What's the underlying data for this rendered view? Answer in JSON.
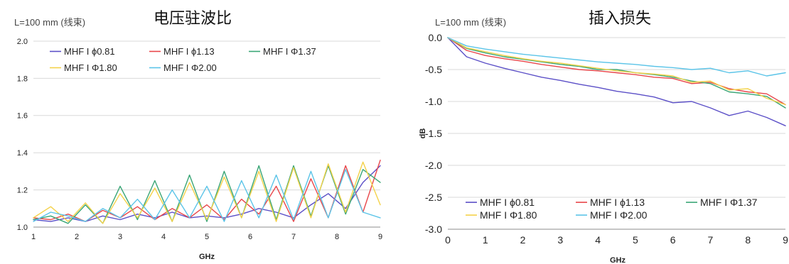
{
  "chart_data": [
    {
      "type": "line",
      "title": "电压驻波比",
      "subtitle": "L=100 mm (线束)",
      "xlabel": "GHz",
      "ylabel": "",
      "xlim": [
        1,
        9
      ],
      "ylim": [
        1.0,
        2.0
      ],
      "x_ticks": [
        "1",
        "2",
        "3",
        "4",
        "5",
        "6",
        "7",
        "8",
        "9"
      ],
      "y_ticks": [
        "2.0",
        "1.8",
        "1.6",
        "1.4",
        "1.2",
        "1.0"
      ],
      "grid": true,
      "legend_position": "top",
      "series": [
        {
          "name": "MHF I ϕ0.81",
          "color": "#5b4fc7",
          "x": [
            1,
            1.4,
            1.8,
            2.2,
            2.6,
            3.0,
            3.4,
            3.8,
            4.2,
            4.6,
            5.0,
            5.4,
            5.8,
            6.2,
            6.6,
            7.0,
            7.4,
            7.8,
            8.2,
            8.6,
            9.0
          ],
          "y": [
            1.04,
            1.03,
            1.05,
            1.03,
            1.06,
            1.04,
            1.07,
            1.05,
            1.08,
            1.05,
            1.06,
            1.05,
            1.07,
            1.1,
            1.08,
            1.05,
            1.12,
            1.18,
            1.1,
            1.24,
            1.33
          ]
        },
        {
          "name": "MHF I ϕ1.13",
          "color": "#e8464a",
          "x": [
            1,
            1.4,
            1.8,
            2.2,
            2.6,
            3.0,
            3.4,
            3.8,
            4.2,
            4.6,
            5.0,
            5.4,
            5.8,
            6.2,
            6.6,
            7.0,
            7.4,
            7.8,
            8.2,
            8.6,
            9.0
          ],
          "y": [
            1.05,
            1.04,
            1.07,
            1.03,
            1.09,
            1.05,
            1.11,
            1.04,
            1.1,
            1.05,
            1.12,
            1.04,
            1.15,
            1.07,
            1.22,
            1.03,
            1.26,
            1.05,
            1.33,
            1.08,
            1.36
          ]
        },
        {
          "name": "MHF I Φ1.37",
          "color": "#3aa676",
          "x": [
            1,
            1.4,
            1.8,
            2.2,
            2.6,
            3.0,
            3.4,
            3.8,
            4.2,
            4.6,
            5.0,
            5.4,
            5.8,
            6.2,
            6.6,
            7.0,
            7.4,
            7.8,
            8.2,
            8.6,
            9.0
          ],
          "y": [
            1.04,
            1.06,
            1.02,
            1.12,
            1.02,
            1.22,
            1.04,
            1.25,
            1.03,
            1.28,
            1.03,
            1.3,
            1.05,
            1.33,
            1.04,
            1.33,
            1.06,
            1.33,
            1.07,
            1.31,
            1.24
          ]
        },
        {
          "name": "MHF I Φ1.80",
          "color": "#f4d24a",
          "x": [
            1,
            1.4,
            1.8,
            2.2,
            2.6,
            3.0,
            3.4,
            3.8,
            4.2,
            4.6,
            5.0,
            5.4,
            5.8,
            6.2,
            6.6,
            7.0,
            7.4,
            7.8,
            8.2,
            8.6,
            9.0
          ],
          "y": [
            1.05,
            1.11,
            1.03,
            1.13,
            1.02,
            1.18,
            1.05,
            1.21,
            1.03,
            1.24,
            1.04,
            1.27,
            1.05,
            1.3,
            1.03,
            1.32,
            1.05,
            1.34,
            1.08,
            1.35,
            1.12
          ]
        },
        {
          "name": "MHF I Φ2.00",
          "color": "#5bc4e8",
          "x": [
            1,
            1.4,
            1.8,
            2.2,
            2.6,
            3.0,
            3.4,
            3.8,
            4.2,
            4.6,
            5.0,
            5.4,
            5.8,
            6.2,
            6.6,
            7.0,
            7.4,
            7.8,
            8.2,
            8.6,
            9.0
          ],
          "y": [
            1.03,
            1.08,
            1.06,
            1.03,
            1.1,
            1.05,
            1.15,
            1.04,
            1.2,
            1.05,
            1.22,
            1.03,
            1.25,
            1.05,
            1.28,
            1.04,
            1.3,
            1.05,
            1.31,
            1.08,
            1.05
          ]
        }
      ]
    },
    {
      "type": "line",
      "title": "插入损失",
      "subtitle": "L=100 mm (线束)",
      "xlabel": "GHz",
      "ylabel": "dB",
      "xlim": [
        0,
        9
      ],
      "ylim": [
        -3.0,
        0.0
      ],
      "x_ticks": [
        "0",
        "1",
        "2",
        "3",
        "4",
        "5",
        "6",
        "7",
        "8",
        "9"
      ],
      "y_ticks": [
        "0.0",
        "-0.5",
        "-1.0",
        "-1.5",
        "-2.0",
        "-2.5",
        "-3.0"
      ],
      "grid": true,
      "legend_position": "bottom-left",
      "series": [
        {
          "name": "MHF I ϕ0.81",
          "color": "#5b4fc7",
          "x": [
            0,
            0.5,
            1,
            1.5,
            2,
            2.5,
            3,
            3.5,
            4,
            4.5,
            5,
            5.5,
            6,
            6.5,
            7,
            7.5,
            8,
            8.5,
            9
          ],
          "y": [
            0,
            -0.3,
            -0.4,
            -0.48,
            -0.55,
            -0.62,
            -0.67,
            -0.73,
            -0.78,
            -0.84,
            -0.88,
            -0.93,
            -1.02,
            -1.0,
            -1.1,
            -1.22,
            -1.15,
            -1.25,
            -1.38
          ]
        },
        {
          "name": "MHF I ϕ1.13",
          "color": "#e8464a",
          "x": [
            0,
            0.5,
            1,
            1.5,
            2,
            2.5,
            3,
            3.5,
            4,
            4.5,
            5,
            5.5,
            6,
            6.5,
            7,
            7.5,
            8,
            8.5,
            9
          ],
          "y": [
            0,
            -0.2,
            -0.28,
            -0.33,
            -0.37,
            -0.42,
            -0.46,
            -0.5,
            -0.52,
            -0.55,
            -0.58,
            -0.62,
            -0.64,
            -0.72,
            -0.7,
            -0.8,
            -0.85,
            -0.88,
            -1.05
          ]
        },
        {
          "name": "MHF I Φ1.37",
          "color": "#3aa676",
          "x": [
            0,
            0.5,
            1,
            1.5,
            2,
            2.5,
            3,
            3.5,
            4,
            4.5,
            5,
            5.5,
            6,
            6.5,
            7,
            7.5,
            8,
            8.5,
            9
          ],
          "y": [
            0,
            -0.17,
            -0.24,
            -0.3,
            -0.34,
            -0.38,
            -0.42,
            -0.45,
            -0.5,
            -0.5,
            -0.55,
            -0.58,
            -0.62,
            -0.68,
            -0.72,
            -0.85,
            -0.88,
            -0.92,
            -1.1
          ]
        },
        {
          "name": "MHF I Φ1.80",
          "color": "#f4d24a",
          "x": [
            0,
            0.5,
            1,
            1.5,
            2,
            2.5,
            3,
            3.5,
            4,
            4.5,
            5,
            5.5,
            6,
            6.5,
            7,
            7.5,
            8,
            8.5,
            9
          ],
          "y": [
            0,
            -0.16,
            -0.22,
            -0.28,
            -0.33,
            -0.37,
            -0.4,
            -0.44,
            -0.48,
            -0.52,
            -0.55,
            -0.57,
            -0.6,
            -0.7,
            -0.68,
            -0.82,
            -0.8,
            -0.95,
            -1.05
          ]
        },
        {
          "name": "MHF I Φ2.00",
          "color": "#5bc4e8",
          "x": [
            0,
            0.5,
            1,
            1.5,
            2,
            2.5,
            3,
            3.5,
            4,
            4.5,
            5,
            5.5,
            6,
            6.5,
            7,
            7.5,
            8,
            8.5,
            9
          ],
          "y": [
            0,
            -0.13,
            -0.18,
            -0.22,
            -0.26,
            -0.29,
            -0.32,
            -0.35,
            -0.38,
            -0.4,
            -0.42,
            -0.45,
            -0.47,
            -0.5,
            -0.48,
            -0.55,
            -0.52,
            -0.6,
            -0.55
          ]
        }
      ]
    }
  ]
}
